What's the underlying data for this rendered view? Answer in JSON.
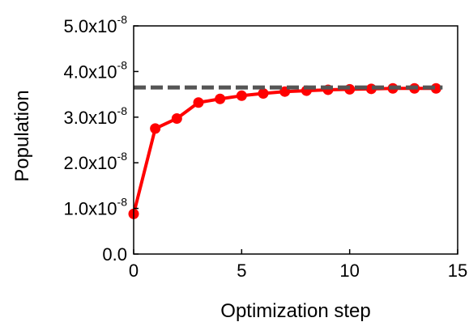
{
  "chart_data": {
    "type": "line",
    "xlabel": "Optimization step",
    "ylabel": "Population",
    "xlim": [
      0,
      15
    ],
    "ylim": [
      0,
      5e-08
    ],
    "x_ticks": [
      {
        "value": 0,
        "label": "0"
      },
      {
        "value": 5,
        "label": "5"
      },
      {
        "value": 10,
        "label": "10"
      },
      {
        "value": 15,
        "label": "15"
      }
    ],
    "y_ticks": [
      {
        "value": 0,
        "mantissa": "0.0",
        "exponent": ""
      },
      {
        "value": 1e-08,
        "mantissa": "1.0x10",
        "exponent": "-8"
      },
      {
        "value": 2e-08,
        "mantissa": "2.0x10",
        "exponent": "-8"
      },
      {
        "value": 3e-08,
        "mantissa": "3.0x10",
        "exponent": "-8"
      },
      {
        "value": 4e-08,
        "mantissa": "4.0x10",
        "exponent": "-8"
      },
      {
        "value": 5e-08,
        "mantissa": "5.0x10",
        "exponent": "-8"
      }
    ],
    "grid": false,
    "series": [
      {
        "style": "solid-markers",
        "color": "#ff0000",
        "x": [
          0,
          1,
          2,
          3,
          4,
          5,
          6,
          7,
          8,
          9,
          10,
          11,
          12,
          13,
          14
        ],
        "y": [
          8.8e-09,
          2.75e-08,
          2.97e-08,
          3.32e-08,
          3.4e-08,
          3.47e-08,
          3.52e-08,
          3.56e-08,
          3.58e-08,
          3.6e-08,
          3.61e-08,
          3.62e-08,
          3.63e-08,
          3.63e-08,
          3.63e-08
        ]
      },
      {
        "style": "dashed",
        "color": "#555555",
        "x": [
          0,
          14.3
        ],
        "y": [
          3.65e-08,
          3.65e-08
        ]
      }
    ]
  }
}
